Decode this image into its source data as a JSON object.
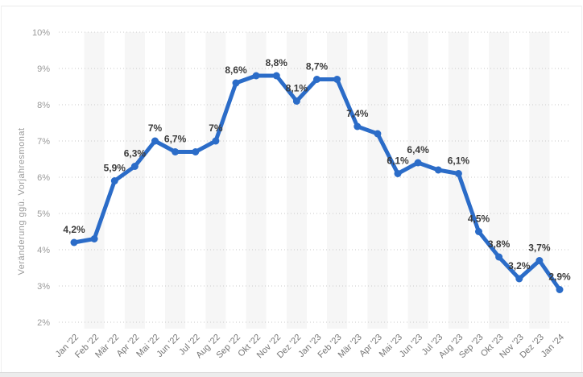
{
  "chart_data": {
    "type": "line",
    "title": "",
    "xlabel": "",
    "ylabel": "Veränderung ggü. Vorjahresmonat",
    "ylim": [
      2,
      10
    ],
    "y_tick_suffix": "%",
    "grid": "horizontal-dotted",
    "legend": "none",
    "line_color": "#2b6cc8",
    "stripe_color": "#f6f6f6",
    "categories": [
      "Jan '22",
      "Feb '22",
      "Mär '22",
      "Apr '22",
      "Mai '22",
      "Jun '22",
      "Jul '22",
      "Aug '22",
      "Sep '22",
      "Okt '22",
      "Nov '22",
      "Dez '22",
      "Jan '23",
      "Feb '23",
      "Mär '23",
      "Apr '23",
      "Mai '23",
      "Jun '23",
      "Jul '23",
      "Aug '23",
      "Sep '23",
      "Okt '23",
      "Nov '23",
      "Dez '23",
      "Jan '24"
    ],
    "values": [
      4.2,
      4.3,
      5.9,
      6.3,
      7,
      6.7,
      6.7,
      7,
      8.6,
      8.8,
      8.8,
      8.1,
      8.7,
      8.7,
      7.4,
      7.2,
      6.1,
      6.4,
      6.2,
      6.1,
      4.5,
      3.8,
      3.2,
      3.7,
      2.9
    ],
    "point_labels": [
      "4,2%",
      null,
      "5,9%",
      "6,3%",
      "7%",
      "6,7%",
      null,
      "7%",
      "8,6%",
      null,
      "8,8%",
      "8,1%",
      "8,7%",
      null,
      "7,4%",
      null,
      "6,1%",
      "6,4%",
      null,
      "6,1%",
      "4,5%",
      "3,8%",
      "3,2%",
      "3,7%",
      "2,9%"
    ]
  }
}
